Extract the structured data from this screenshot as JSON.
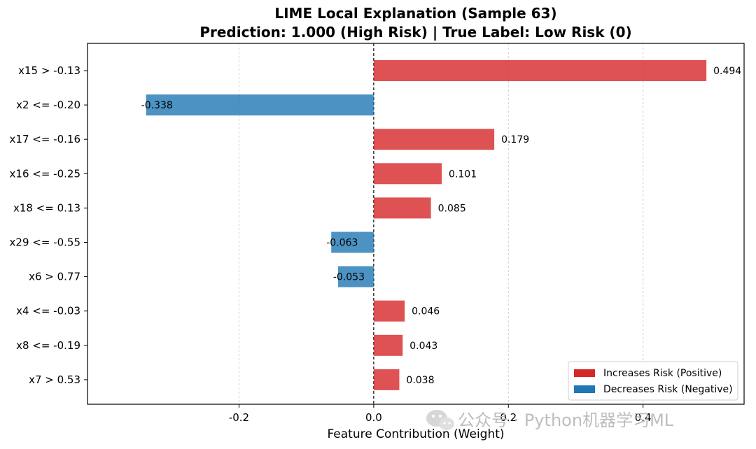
{
  "chart_data": {
    "type": "bar",
    "orientation": "horizontal",
    "title_lines": [
      "LIME Local Explanation (Sample 63)",
      "Prediction: 1.000 (High Risk) | True Label: Low Risk (0)"
    ],
    "xlabel": "Feature Contribution (Weight)",
    "ylabel": "",
    "xlim": [
      -0.425,
      0.55
    ],
    "xticks": [
      -0.2,
      0.0,
      0.2,
      0.4
    ],
    "xtick_labels": [
      "-0.2",
      "0.0",
      "0.2",
      "0.4"
    ],
    "categories": [
      "x15 > -0.13",
      "x2 <= -0.20",
      "x17 <= -0.16",
      "x16 <= -0.25",
      "x18 <= 0.13",
      "x29 <= -0.55",
      "x6 > 0.77",
      "x4 <= -0.03",
      "x8 <= -0.19",
      "x7 > 0.53"
    ],
    "values": [
      0.494,
      -0.338,
      0.179,
      0.101,
      0.085,
      -0.063,
      -0.053,
      0.046,
      0.043,
      0.038
    ],
    "value_labels": [
      "0.494",
      "-0.338",
      "0.179",
      "0.101",
      "0.085",
      "-0.063",
      "-0.053",
      "0.046",
      "0.043",
      "0.038"
    ],
    "grid": "x",
    "reference_line": 0,
    "legend": {
      "placement": "bottom-right",
      "items": [
        {
          "label": "Increases Risk (Positive)",
          "color": "#d62728"
        },
        {
          "label": "Decreases Risk (Negative)",
          "color": "#1f77b4"
        }
      ]
    },
    "colors": {
      "positive": "#d62728",
      "negative": "#1f77b4"
    }
  },
  "watermark": {
    "text": "公众号 · Python机器学习ML",
    "icon": "wechat-icon"
  }
}
